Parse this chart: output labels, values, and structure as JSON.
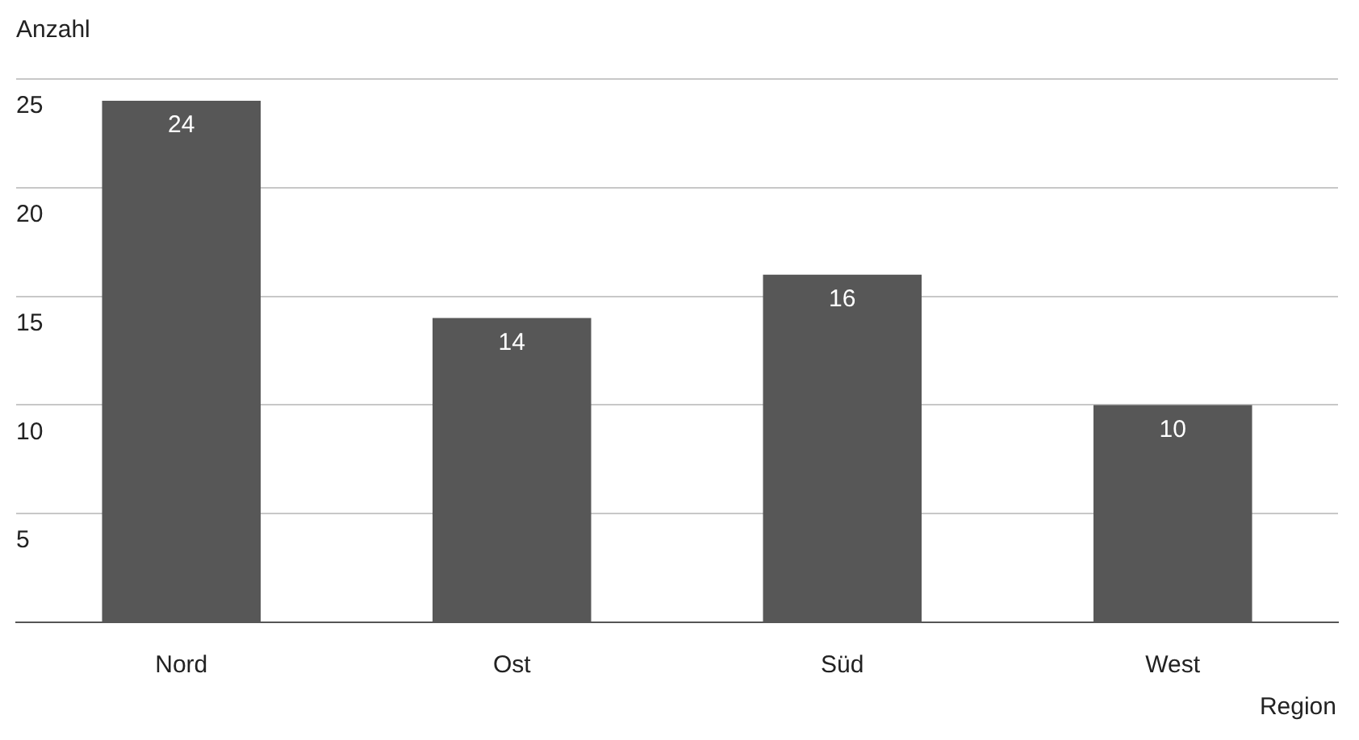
{
  "chart_data": {
    "type": "bar",
    "xlabel": "Region",
    "ylabel": "Anzahl",
    "categories": [
      "Nord",
      "Ost",
      "Süd",
      "West"
    ],
    "values": [
      24,
      14,
      16,
      10
    ],
    "color": "#575757",
    "ylim": [
      0,
      25
    ],
    "yticks": [
      5,
      10,
      15,
      20,
      25
    ],
    "grid": "y",
    "data_labels": true
  }
}
